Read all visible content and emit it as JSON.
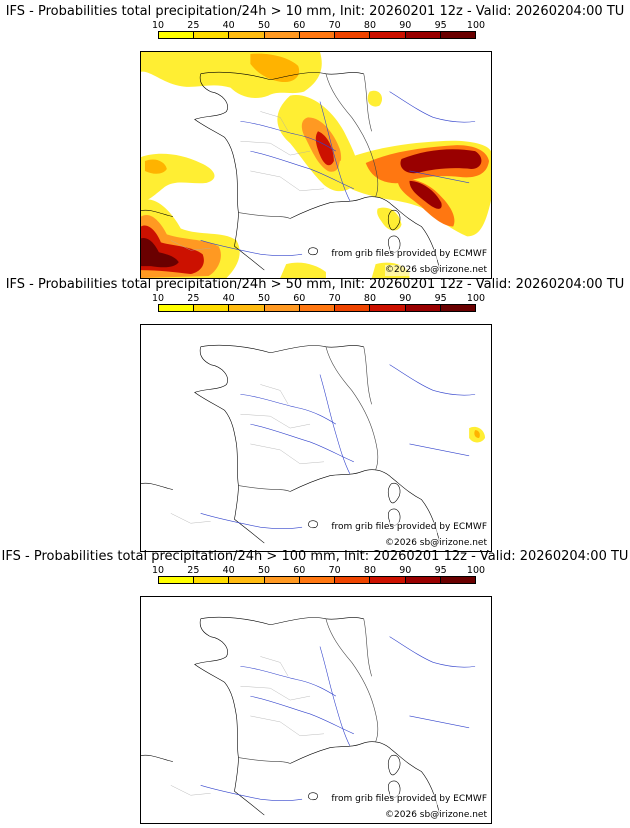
{
  "scale": {
    "ticks": [
      "10",
      "25",
      "40",
      "50",
      "60",
      "70",
      "80",
      "90",
      "95",
      "100"
    ],
    "colors": [
      "#ffff00",
      "#ffdd00",
      "#ffbb11",
      "#ff9922",
      "#ff7711",
      "#ee4400",
      "#cc1100",
      "#990000",
      "#6a0000"
    ]
  },
  "panels": [
    {
      "title": "IFS - Probabilities total precipitation/24h > 10 mm, Init: 20260201 12z - Valid: 20260204:00 TU",
      "level": "10 mm",
      "source": "from grib files provided by ECMWF",
      "copyright": "©2026 sb@irizone.net"
    },
    {
      "title": "IFS - Probabilities total precipitation/24h > 50 mm, Init: 20260201 12z - Valid: 20260204:00 TU",
      "level": "50 mm",
      "source": "from grib files provided by ECMWF",
      "copyright": "©2026 sb@irizone.net"
    },
    {
      "title": "IFS - Probabilities total precipitation/24h > 100 mm, Init: 20260201 12z - Valid: 20260204:00 TU",
      "level": "100 mm",
      "source": "from grib files provided by ECMWF",
      "copyright": "©2026 sb@irizone.net"
    }
  ]
}
